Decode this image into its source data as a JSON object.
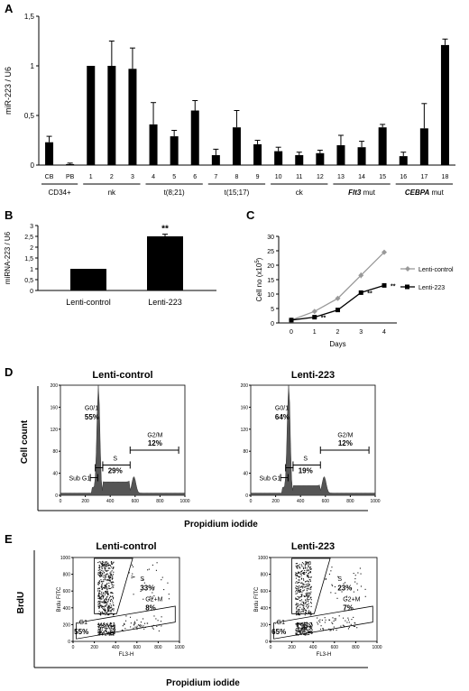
{
  "panels": {
    "A": "A",
    "B": "B",
    "C": "C",
    "D": "D",
    "E": "E"
  },
  "colors": {
    "bar": "#000000",
    "lenti_control_line": "#999999",
    "lenti_223_line": "#000000",
    "histogram": "#555555",
    "dots": "#111111"
  },
  "chart_data": [
    {
      "panel": "A",
      "type": "bar",
      "ylabel": "miR-223 / U6",
      "ylim": [
        0,
        1.5
      ],
      "yticks": [
        "0",
        "0,5",
        "1",
        "1,5"
      ],
      "categories": [
        "CB",
        "PB",
        "1",
        "2",
        "3",
        "4",
        "5",
        "6",
        "7",
        "8",
        "9",
        "10",
        "11",
        "12",
        "13",
        "14",
        "15",
        "16",
        "17",
        "18"
      ],
      "values": [
        0.23,
        0.01,
        1.0,
        1.0,
        0.97,
        0.41,
        0.29,
        0.55,
        0.1,
        0.38,
        0.21,
        0.14,
        0.1,
        0.12,
        0.2,
        0.18,
        0.38,
        0.09,
        0.37,
        1.21
      ],
      "errors": [
        0.06,
        0.01,
        0.0,
        0.25,
        0.21,
        0.22,
        0.06,
        0.1,
        0.06,
        0.17,
        0.04,
        0.04,
        0.03,
        0.03,
        0.1,
        0.06,
        0.03,
        0.04,
        0.25,
        0.06
      ],
      "groups": [
        {
          "label": "CD34+",
          "italic": false,
          "from": 0,
          "to": 1
        },
        {
          "label": "nk",
          "italic": false,
          "from": 2,
          "to": 4
        },
        {
          "label": "t(8;21)",
          "italic": false,
          "from": 5,
          "to": 7
        },
        {
          "label": "t(15;17)",
          "italic": false,
          "from": 8,
          "to": 10
        },
        {
          "label": "ck",
          "italic": false,
          "from": 11,
          "to": 13
        },
        {
          "label": "Flt3",
          "suffix": " mut",
          "italic": true,
          "from": 14,
          "to": 16
        },
        {
          "label": "CEBPA",
          "suffix": " mut",
          "italic": true,
          "from": 17,
          "to": 19
        }
      ]
    },
    {
      "panel": "B",
      "type": "bar",
      "ylabel": "miRNA-223 / U6",
      "ylim": [
        0,
        3
      ],
      "yticks": [
        "0",
        "0,5",
        "1",
        "1,5",
        "2",
        "2,5",
        "3"
      ],
      "categories": [
        "Lenti-control",
        "Lenti-223"
      ],
      "values": [
        1.0,
        2.5
      ],
      "errors": [
        0.0,
        0.1
      ],
      "significance": [
        "",
        "**"
      ]
    },
    {
      "panel": "C",
      "type": "line",
      "ylabel": "Cell no (x10",
      "ylabel_sup": "5",
      "ylabel_end": ")",
      "xlabel": "Days",
      "x": [
        0,
        1,
        2,
        3,
        4
      ],
      "ylim": [
        0,
        30
      ],
      "yticks": [
        0,
        5,
        10,
        15,
        20,
        25,
        30
      ],
      "series": [
        {
          "name": "Lenti-control",
          "values": [
            1.0,
            4.0,
            8.5,
            16.5,
            24.5
          ],
          "errors": [
            0,
            0.3,
            0.5,
            1.0,
            0.5
          ]
        },
        {
          "name": "Lenti-223",
          "values": [
            1.0,
            2.0,
            4.5,
            10.5,
            13.0
          ],
          "errors": [
            0,
            0.3,
            0.4,
            0.6,
            0.4
          ]
        }
      ],
      "significance": [
        "",
        "**",
        "",
        "**",
        "**"
      ]
    }
  ],
  "panel_d": {
    "ylabel": "Cell count",
    "xlabel": "Propidium iodide",
    "xticks": [
      "0",
      "200",
      "400",
      "600",
      "800",
      "1000"
    ],
    "yticks": [
      "0",
      "40",
      "80",
      "120",
      "160",
      "200"
    ],
    "plots": [
      {
        "title": "Lenti-control",
        "g01": "G0/1",
        "g01_pct": "55%",
        "s": "S",
        "s_pct": "29%",
        "g2m": "G2/M",
        "g2m_pct": "12%",
        "subg1": "Sub G1"
      },
      {
        "title": "Lenti-223",
        "g01": "G0/1",
        "g01_pct": "64%",
        "s": "S",
        "s_pct": "19%",
        "g2m": "G2/M",
        "g2m_pct": "12%",
        "subg1": "Sub G1"
      }
    ]
  },
  "panel_e": {
    "ylabel": "BrdU",
    "xlabel": "Propidium iodide",
    "xticks": [
      "0",
      "200",
      "400",
      "600",
      "800",
      "1000"
    ],
    "yticks": [
      "0",
      "200",
      "400",
      "600",
      "800",
      "1000"
    ],
    "plots": [
      {
        "title": "Lenti-control",
        "inner_ylabel": "Brdu FITC",
        "inner_xlabel": "FL3-H",
        "s": "S",
        "s_pct": "33%",
        "g2m": "G2+M",
        "g2m_pct": "8%",
        "g1": "G1",
        "g1_pct": "55%"
      },
      {
        "title": "Lenti-223",
        "inner_ylabel": "Brdu FITC",
        "inner_xlabel": "FL3-H",
        "s": "S",
        "s_pct": "23%",
        "g2m": "G2+M",
        "g2m_pct": "7%",
        "g1": "G1",
        "g1_pct": "65%"
      }
    ]
  }
}
